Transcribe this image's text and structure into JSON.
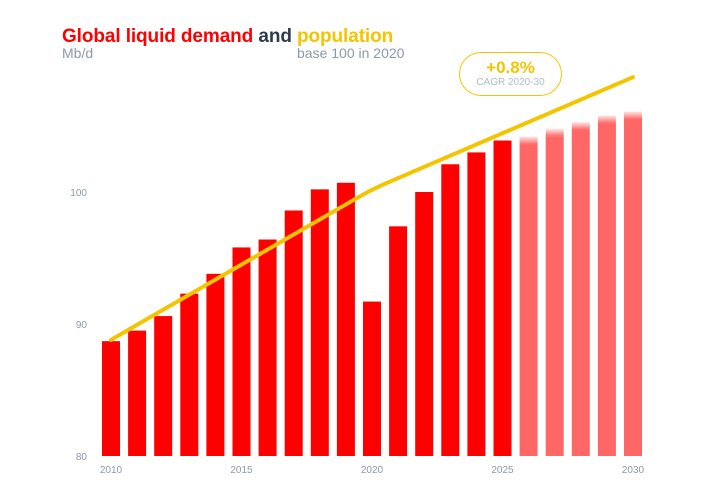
{
  "title": {
    "part1": "Global liquid demand",
    "part2": " and ",
    "part3": "population"
  },
  "subtitle_left": "Mb/d",
  "subtitle_right": "base 100 in 2020",
  "badge": {
    "value": "+0.8%",
    "label": "CAGR 2020-30"
  },
  "colors": {
    "demand": "#ff0000",
    "forecast": "#ff6666",
    "population": "#f5c400",
    "axis_text": "#8a9aaa"
  },
  "chart_data": {
    "type": "bar",
    "title": "Global liquid demand and population",
    "ylabel": "Mb/d",
    "y2label": "base 100 in 2020",
    "ylim": [
      80,
      108
    ],
    "yticks": [
      "80",
      "90",
      "100"
    ],
    "xticks": [
      "2010",
      "2015",
      "2020",
      "2025",
      "2030"
    ],
    "categories": [
      "2010",
      "2011",
      "2012",
      "2013",
      "2014",
      "2015",
      "2016",
      "2017",
      "2018",
      "2019",
      "2020",
      "2021",
      "2022",
      "2023",
      "2024",
      "2025",
      "2026",
      "2027",
      "2028",
      "2029",
      "2030"
    ],
    "series": [
      {
        "name": "Global liquid demand",
        "kind": "bar",
        "values": [
          88.7,
          89.5,
          90.6,
          92.3,
          93.8,
          95.8,
          96.4,
          98.6,
          100.2,
          100.7,
          91.7,
          97.4,
          100.0,
          102.1,
          103.0,
          103.9,
          104.2,
          104.8,
          105.3,
          105.8,
          106.1
        ],
        "forecast_from": "2026"
      },
      {
        "name": "Population",
        "kind": "line",
        "x": [
          "2010",
          "2020",
          "2030"
        ],
        "values": [
          88.8,
          100.2,
          108.7
        ]
      }
    ],
    "annotation": "+0.8% CAGR 2020-30",
    "grid": false,
    "legend": "none"
  }
}
